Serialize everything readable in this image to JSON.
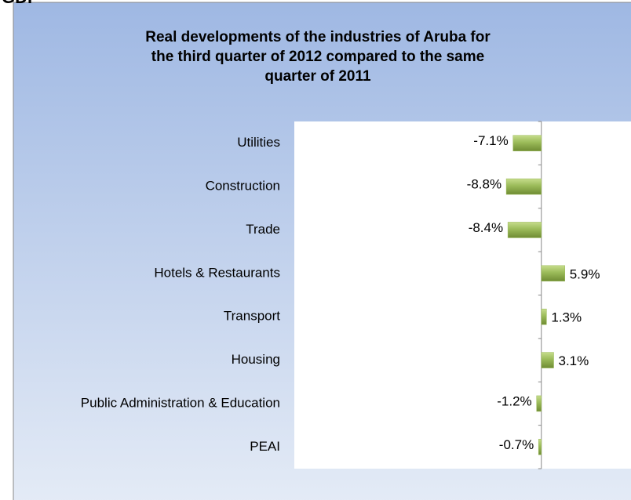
{
  "page_label": "GDP",
  "chart_data": {
    "type": "barh",
    "title": [
      "Real developments of the industries of Aruba for",
      "the third quarter of 2012 compared to the same",
      "quarter of 2011"
    ],
    "categories": [
      "Utilities",
      "Construction",
      "Trade",
      "Hotels & Restaurants",
      "Transport",
      "Housing",
      "Public Administration & Education",
      "PEAI"
    ],
    "values": [
      -7.1,
      -8.8,
      -8.4,
      5.9,
      1.3,
      3.1,
      -1.2,
      -0.7
    ],
    "value_labels": [
      "-7.1%",
      "-8.8%",
      "-8.4%",
      "5.9%",
      "1.3%",
      "3.1%",
      "-1.2%",
      "-0.7%"
    ],
    "color": "#9bbb59",
    "xlim": [
      -62,
      22.5
    ]
  }
}
